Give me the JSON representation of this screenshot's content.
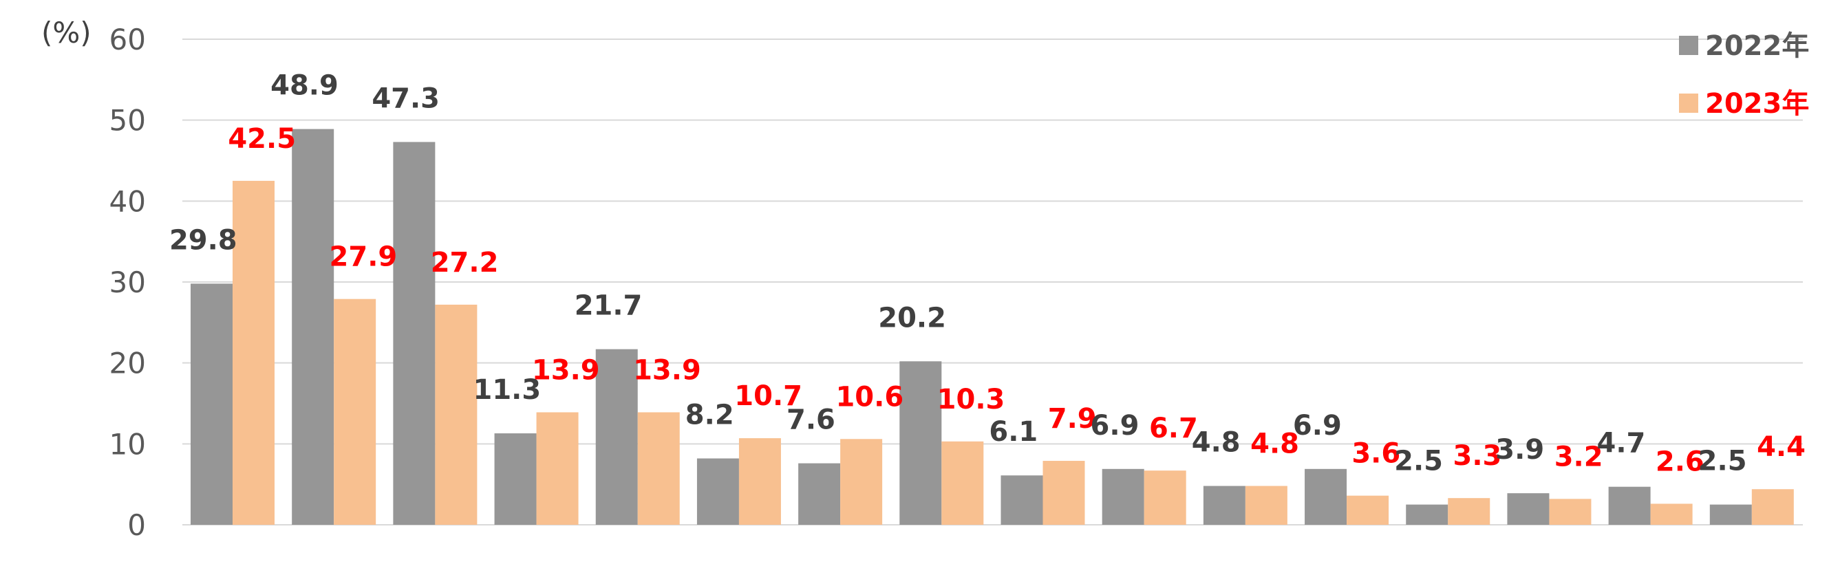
{
  "chart_data": {
    "type": "bar",
    "ylabel": "(%)",
    "ylim": [
      0,
      60
    ],
    "yticks": [
      "0",
      "10",
      "20",
      "30",
      "40",
      "50",
      "60"
    ],
    "grid": true,
    "legend_position": "top-right",
    "categories": [
      "",
      "",
      "",
      "",
      "",
      "",
      "",
      "",
      "",
      "",
      "",
      "",
      "",
      "",
      "",
      ""
    ],
    "series": [
      {
        "name": "2022年",
        "color": "#969696",
        "label_color": "#404040",
        "values": [
          29.8,
          48.9,
          47.3,
          11.3,
          21.7,
          8.2,
          7.6,
          20.2,
          6.1,
          6.9,
          4.8,
          6.9,
          2.5,
          3.9,
          4.7,
          2.5
        ],
        "labels": [
          "29.8",
          "48.9",
          "47.3",
          "11.3",
          "21.7",
          "8.2",
          "7.6",
          "20.2",
          "6.1",
          "6.9",
          "4.8",
          "6.9",
          "2.5",
          "3.9",
          "4.7",
          "2.5"
        ]
      },
      {
        "name": "2023年",
        "color": "#F8C090",
        "label_color": "#FF0000",
        "values": [
          42.5,
          27.9,
          27.2,
          13.9,
          13.9,
          10.7,
          10.6,
          10.3,
          7.9,
          6.7,
          4.8,
          3.6,
          3.3,
          3.2,
          2.6,
          4.4
        ],
        "labels": [
          "42.5",
          "27.9",
          "27.2",
          "13.9",
          "13.9",
          "10.7",
          "10.6",
          "10.3",
          "7.9",
          "6.7",
          "4.8",
          "3.6",
          "3.3",
          "3.2",
          "2.6",
          "4.4"
        ]
      }
    ],
    "gridline_color": "#d9d9d9",
    "axis_line_color": "#d9d9d9"
  }
}
